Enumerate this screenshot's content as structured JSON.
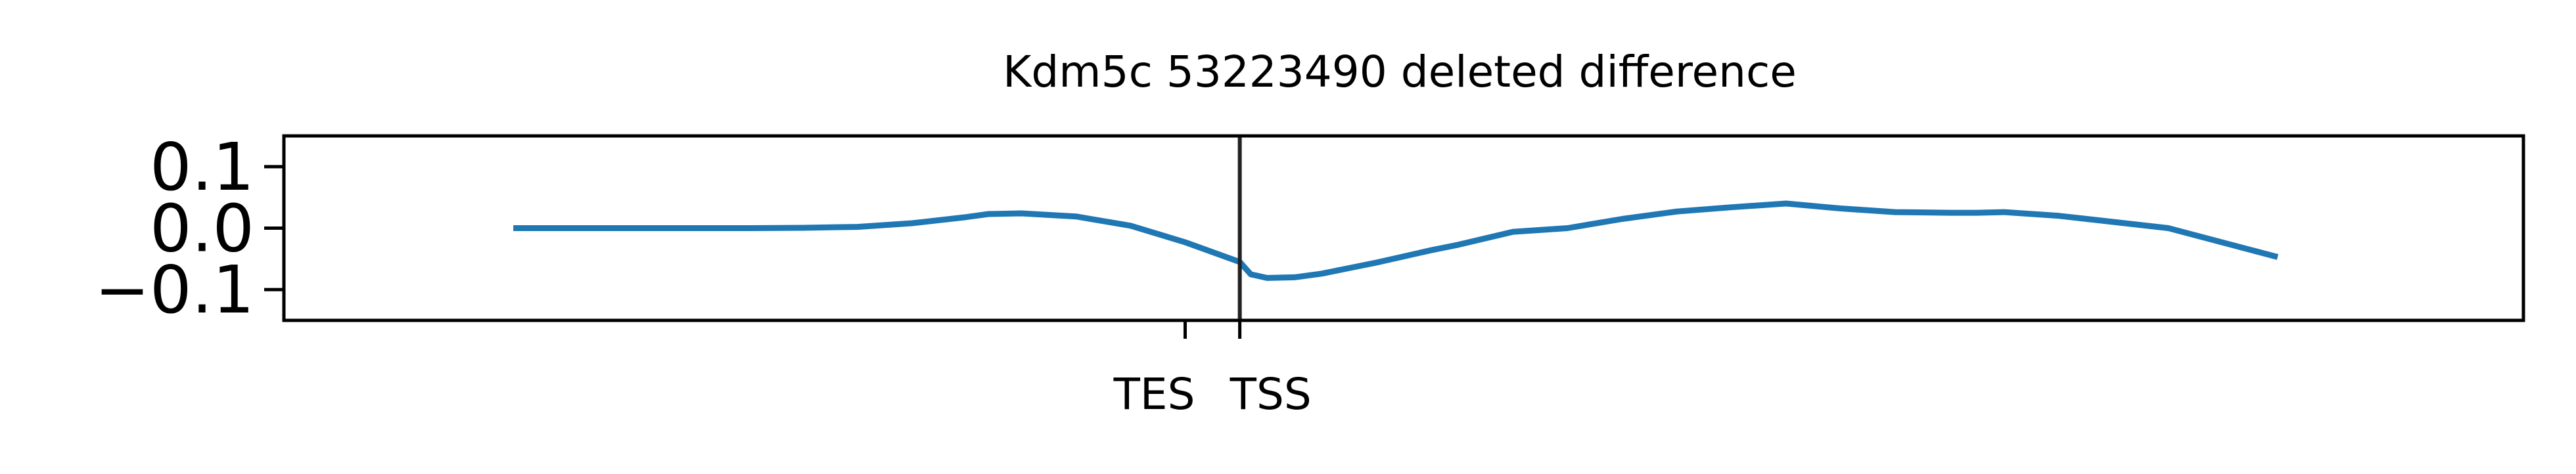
{
  "chart_data": {
    "type": "line",
    "title": "Kdm5c 53223490 deleted difference",
    "xlabel": "",
    "ylabel": "",
    "ylim": [
      -0.15,
      0.15
    ],
    "xlim": [
      -750,
      3350
    ],
    "yticks": [
      {
        "value": 0.1,
        "label": "0.1"
      },
      {
        "value": 0.0,
        "label": "0.0"
      },
      {
        "value": -0.1,
        "label": "−0.1"
      }
    ],
    "xticks": [
      {
        "value": 900,
        "label": "TES"
      },
      {
        "value": 1000,
        "label": "TSS"
      }
    ],
    "vline_at": 1000,
    "grid": false,
    "legend": "none",
    "colors": {
      "line": "#1f77b4",
      "vline": "#222222",
      "axes": "#000000"
    },
    "series": [
      {
        "x": [
          -330,
          0,
          100,
          200,
          300,
          400,
          500,
          540,
          600,
          700,
          800,
          900,
          1000,
          1020,
          1050,
          1100,
          1150,
          1200,
          1250,
          1300,
          1350,
          1400,
          1500,
          1600,
          1700,
          1800,
          1900,
          2000,
          2100,
          2200,
          2300,
          2350,
          2400,
          2500,
          2600,
          2700,
          2900
        ],
        "y": [
          0.0,
          0.0,
          0.0,
          0.0005,
          0.002,
          0.008,
          0.018,
          0.023,
          0.024,
          0.019,
          0.004,
          -0.023,
          -0.055,
          -0.075,
          -0.081,
          -0.08,
          -0.074,
          -0.065,
          -0.056,
          -0.046,
          -0.036,
          -0.027,
          -0.006,
          0.0,
          0.015,
          0.027,
          0.034,
          0.04,
          0.032,
          0.026,
          0.025,
          0.025,
          0.026,
          0.02,
          0.01,
          0.0,
          -0.047
        ]
      }
    ]
  }
}
